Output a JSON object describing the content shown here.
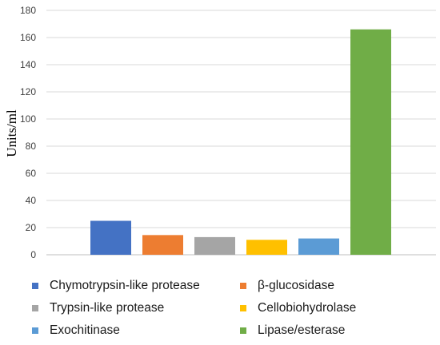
{
  "chart_data": {
    "type": "bar",
    "title": "",
    "xlabel": "",
    "ylabel": "Units/ml",
    "ylim": [
      0,
      180
    ],
    "yticks": [
      0,
      20,
      40,
      60,
      80,
      100,
      120,
      140,
      160,
      180
    ],
    "grid": true,
    "legend_position": "bottom",
    "categories": [
      "Chymotrypsin-like protease",
      "β-glucosidase",
      "Trypsin-like protease",
      "Cellobiohydrolase",
      "Exochitinase",
      "Lipase/esterase"
    ],
    "values": [
      25,
      14.5,
      13,
      11,
      12,
      166
    ],
    "colors": [
      "#4472c4",
      "#ed7d31",
      "#a5a5a5",
      "#ffc000",
      "#5b9bd5",
      "#70ad47"
    ]
  }
}
